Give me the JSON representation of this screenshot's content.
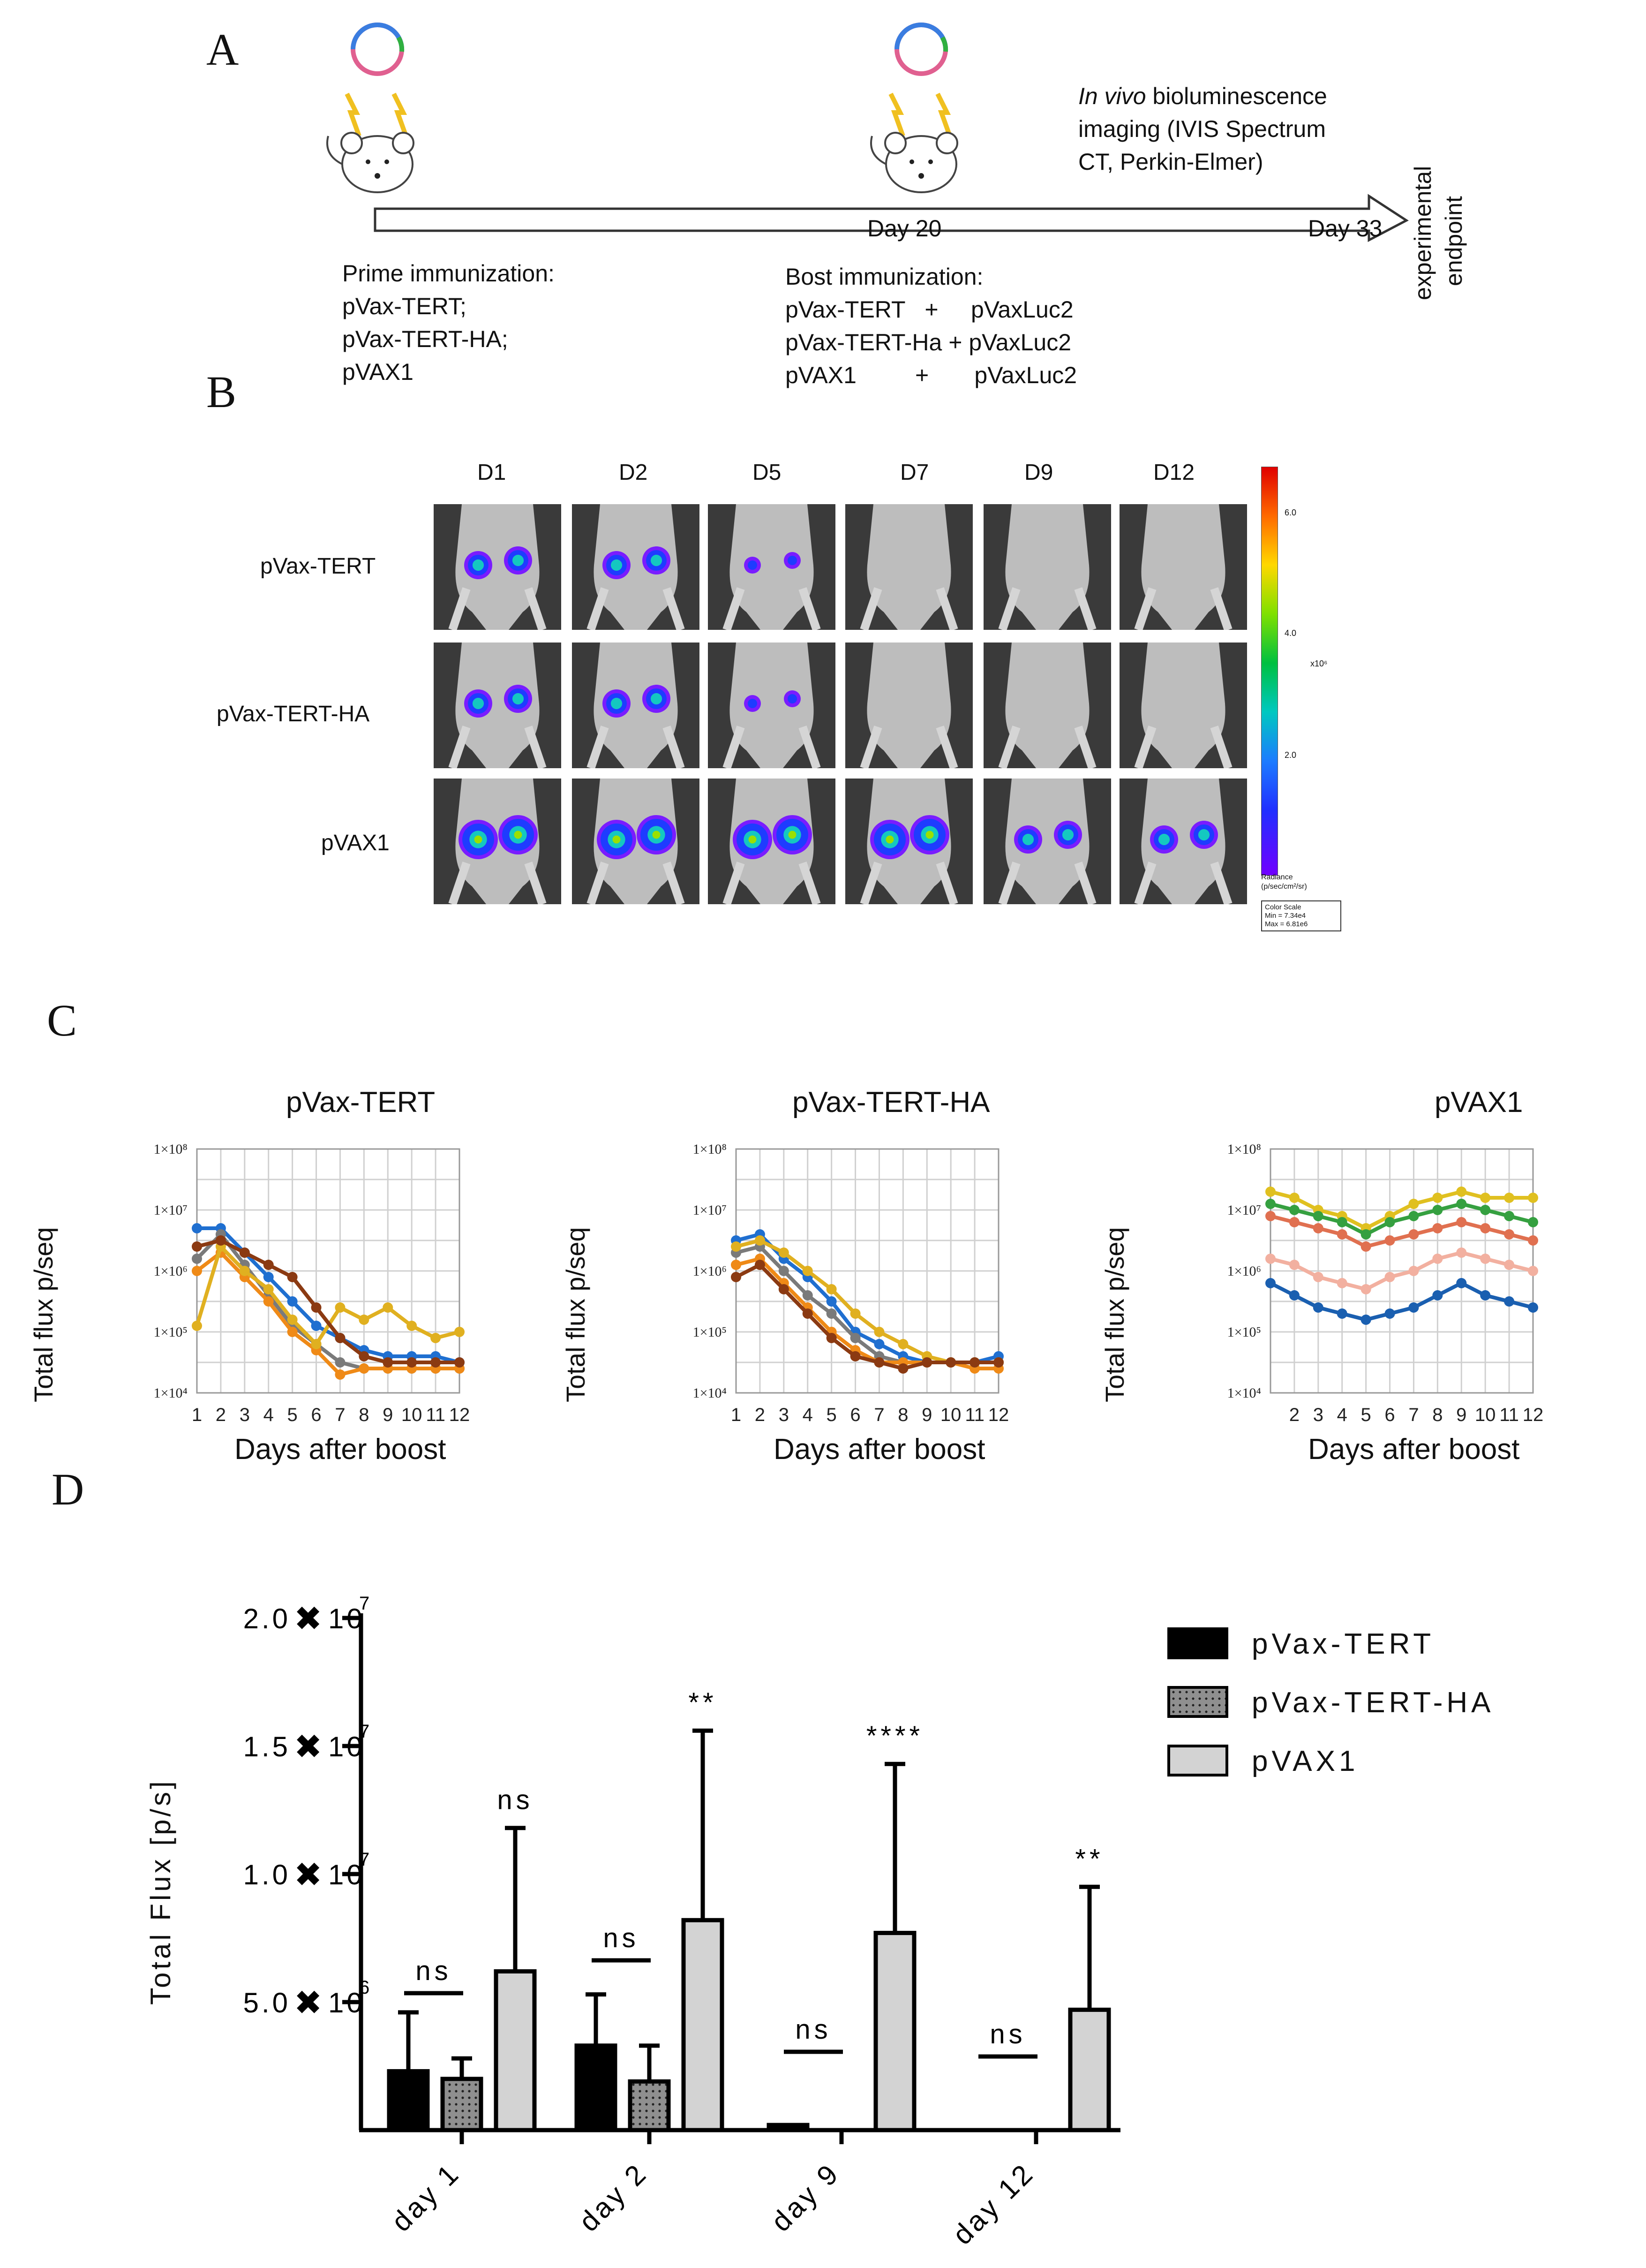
{
  "panels": {
    "a": "A",
    "b": "B",
    "c": "C",
    "d": "D"
  },
  "timeline": {
    "imaging_text_italic": "In vivo",
    "imaging_text_rest": " bioluminescence",
    "imaging_line2": "imaging (IVIS Spectrum",
    "imaging_line3": "CT, Perkin-Elmer)",
    "day20": "Day 20",
    "day33": "Day 33",
    "endpoint_line1": "experimental",
    "endpoint_line2": "endpoint",
    "prime_lines": [
      "Prime immunization:",
      "pVax-TERT;",
      "pVax-TERT-HA;",
      "pVAX1"
    ],
    "boost_lines": [
      "Bost immunization:",
      "pVax-TERT   +     pVaxLuc2",
      "pVax-TERT-Ha + pVaxLuc2",
      "pVAX1         +       pVaxLuc2"
    ]
  },
  "imaging": {
    "days": [
      "D1",
      "D2",
      "D5",
      "D7",
      "D9",
      "D12"
    ],
    "groups": [
      "pVax-TERT",
      "pVax-TERT-HA",
      "pVAX1"
    ],
    "scale_ticks": [
      "6.0",
      "4.0",
      "2.0"
    ],
    "scale_unit": "x10⁶",
    "radiance_label": "Radiance",
    "radiance_unit": "(p/sec/cm²/sr)",
    "color_scale_box": [
      "Color Scale",
      "Min = 7.34e4",
      "Max = 6.81e6"
    ]
  },
  "line_charts": [
    {
      "title": "pVax-TERT",
      "ylabel": "Total flux p/seq",
      "xlabel": "Days after boost",
      "yticks": [
        "1×10⁸",
        "1×10⁷",
        "1×10⁶",
        "1×10⁵",
        "1×10⁴"
      ],
      "xticks": [
        "1",
        "2",
        "3",
        "4",
        "5",
        "6",
        "7",
        "8",
        "9",
        "10",
        "11",
        "12"
      ]
    },
    {
      "title": "pVax-TERT-HA",
      "ylabel": "Total flux p/seq",
      "xlabel": "Days after boost",
      "yticks": [
        "1×10⁸",
        "1×10⁷",
        "1×10⁶",
        "1×10⁵",
        "1×10⁴"
      ],
      "xticks": [
        "1",
        "2",
        "3",
        "4",
        "5",
        "6",
        "7",
        "8",
        "9",
        "10",
        "11",
        "12"
      ]
    },
    {
      "title": "pVAX1",
      "ylabel": "Total flux p/seq",
      "xlabel": "Days after boost",
      "yticks": [
        "1×10⁸",
        "1×10⁷",
        "1×10⁶",
        "1×10⁵",
        "1×10⁴"
      ],
      "xticks": [
        "",
        "2",
        "3",
        "4",
        "5",
        "6",
        "7",
        "8",
        "9",
        "10",
        "11",
        "12"
      ]
    }
  ],
  "chart_data": {
    "type": "bar",
    "ylabel": "Total Flux [p/s]",
    "ylim": [
      0,
      20000000
    ],
    "yticks": [
      {
        "value": 5000000,
        "label_pre": "5.0",
        "label_post": "10",
        "exp": "6"
      },
      {
        "value": 10000000,
        "label_pre": "1.0",
        "label_post": "10",
        "exp": "7"
      },
      {
        "value": 15000000,
        "label_pre": "1.5",
        "label_post": "10",
        "exp": "7"
      },
      {
        "value": 20000000,
        "label_pre": "2.0",
        "label_post": "10",
        "exp": "7"
      }
    ],
    "categories": [
      "day 1",
      "day 2",
      "day 9",
      "day 12"
    ],
    "series": [
      {
        "name": "pVax-TERT",
        "fill": "#000000",
        "values": [
          2300000,
          3300000,
          200000,
          0
        ],
        "err": [
          2300000,
          2000000,
          0,
          0
        ]
      },
      {
        "name": "pVax-TERT-HA",
        "fill": "#8f8f8f",
        "values": [
          2000000,
          1900000,
          0,
          0
        ],
        "err": [
          800000,
          1400000,
          0,
          0
        ]
      },
      {
        "name": "pVAX1",
        "fill": "#d3d3d3",
        "values": [
          6200000,
          8200000,
          7700000,
          4700000
        ],
        "err": [
          5600000,
          7400000,
          6600000,
          4800000
        ]
      }
    ],
    "significance": [
      {
        "category": "day 1",
        "ns_label": "ns",
        "star_label": "ns"
      },
      {
        "category": "day 2",
        "ns_label": "ns",
        "star_label": "**"
      },
      {
        "category": "day 9",
        "ns_label": "ns",
        "star_label": "****"
      },
      {
        "category": "day 12",
        "ns_label": "ns",
        "star_label": "**"
      }
    ]
  }
}
